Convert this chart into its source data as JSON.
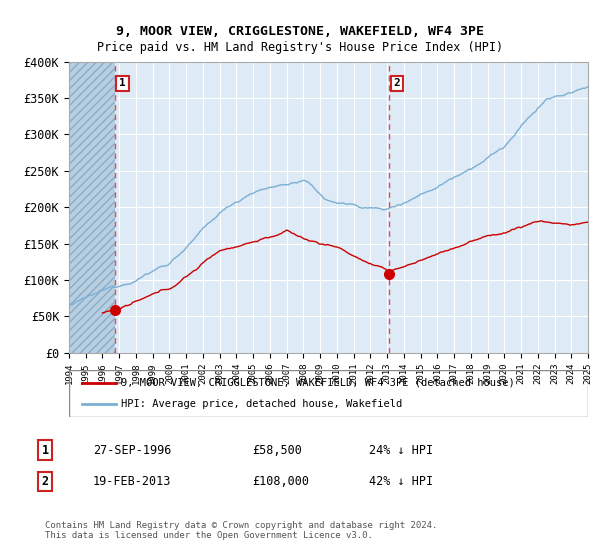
{
  "title": "9, MOOR VIEW, CRIGGLESTONE, WAKEFIELD, WF4 3PE",
  "subtitle": "Price paid vs. HM Land Registry's House Price Index (HPI)",
  "ylim": [
    0,
    400000
  ],
  "xlim_start": 1994,
  "xlim_end": 2025,
  "sale1_date": 1996.75,
  "sale1_price": 58500,
  "sale2_date": 2013.12,
  "sale2_price": 108000,
  "legend_line1": "9, MOOR VIEW, CRIGGLESTONE, WAKEFIELD, WF4 3PE (detached house)",
  "legend_line2": "HPI: Average price, detached house, Wakefield",
  "annotation1_date": "27-SEP-1996",
  "annotation1_price": "£58,500",
  "annotation1_hpi": "24% ↓ HPI",
  "annotation2_date": "19-FEB-2013",
  "annotation2_price": "£108,000",
  "annotation2_hpi": "42% ↓ HPI",
  "footer": "Contains HM Land Registry data © Crown copyright and database right 2024.\nThis data is licensed under the Open Government Licence v3.0.",
  "red_line_color": "#cc0000",
  "blue_line_color": "#7bafd4",
  "dashed_red_color": "#e05050",
  "bg_blue": "#deeaf5",
  "hatch_color": "#b8cfe0"
}
